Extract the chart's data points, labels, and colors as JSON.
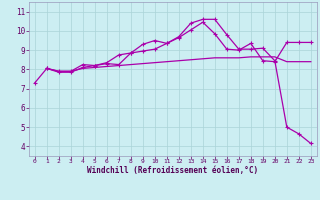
{
  "xlabel": "Windchill (Refroidissement éolien,°C)",
  "background_color": "#cceef2",
  "grid_color": "#aad4d8",
  "line_color": "#aa00aa",
  "xlim": [
    -0.5,
    23.5
  ],
  "ylim": [
    3.5,
    11.5
  ],
  "xticks": [
    0,
    1,
    2,
    3,
    4,
    5,
    6,
    7,
    8,
    9,
    10,
    11,
    12,
    13,
    14,
    15,
    16,
    17,
    18,
    19,
    20,
    21,
    22,
    23
  ],
  "yticks": [
    4,
    5,
    6,
    7,
    8,
    9,
    10,
    11
  ],
  "line1_x": [
    0,
    1,
    2,
    3,
    4,
    5,
    6,
    7,
    8,
    9,
    10,
    11,
    12,
    13,
    14,
    15,
    16,
    17,
    18,
    19,
    20,
    21,
    22,
    23
  ],
  "line1_y": [
    7.3,
    8.05,
    7.9,
    7.9,
    8.25,
    8.2,
    8.35,
    8.75,
    8.85,
    9.3,
    9.5,
    9.35,
    9.7,
    10.4,
    10.6,
    10.6,
    9.8,
    9.05,
    9.05,
    9.1,
    8.45,
    5.0,
    4.65,
    4.15
  ],
  "line2_x": [
    1,
    2,
    3,
    4,
    5,
    6,
    7,
    8,
    9,
    10,
    11,
    12,
    13,
    14,
    15,
    16,
    17,
    18,
    19,
    20,
    21,
    22,
    23
  ],
  "line2_y": [
    8.05,
    7.9,
    7.9,
    8.05,
    8.1,
    8.15,
    8.2,
    8.25,
    8.3,
    8.35,
    8.4,
    8.45,
    8.5,
    8.55,
    8.6,
    8.6,
    8.6,
    8.65,
    8.65,
    8.65,
    8.4,
    8.4,
    8.4
  ],
  "line3_x": [
    1,
    2,
    3,
    4,
    5,
    6,
    7,
    8,
    9,
    10,
    11,
    12,
    13,
    14,
    15,
    16,
    17,
    18,
    19,
    20,
    21,
    22,
    23
  ],
  "line3_y": [
    8.05,
    7.85,
    7.85,
    8.1,
    8.2,
    8.3,
    8.25,
    8.85,
    8.95,
    9.05,
    9.35,
    9.65,
    10.05,
    10.45,
    9.85,
    9.05,
    9.0,
    9.35,
    8.45,
    8.4,
    9.4,
    9.4,
    9.4
  ],
  "xlabel_fontsize": 5.5,
  "tick_fontsize_x": 4.5,
  "tick_fontsize_y": 5.5,
  "tick_color": "#660066",
  "xlabel_color": "#550055"
}
